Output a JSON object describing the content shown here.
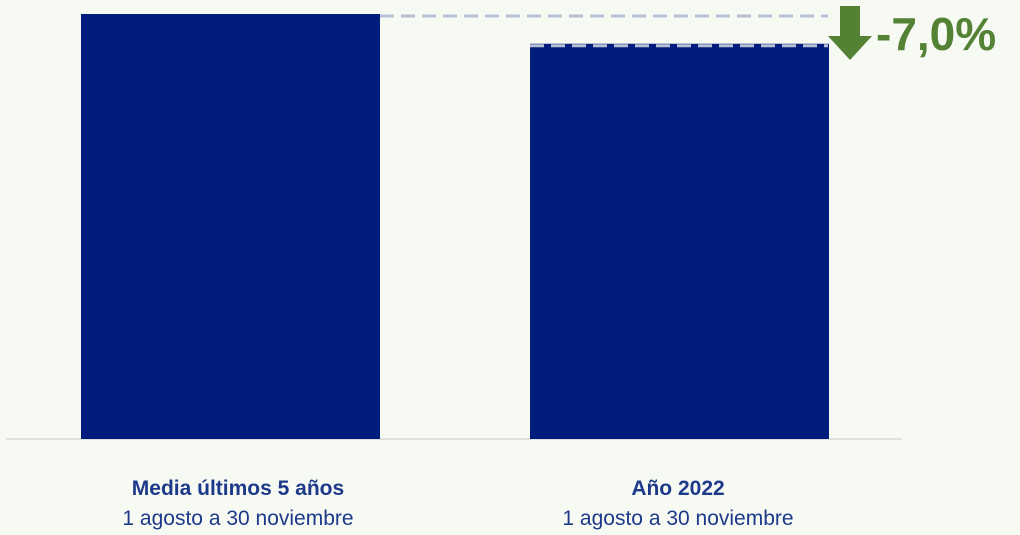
{
  "chart_data": {
    "type": "bar",
    "categories": [
      {
        "title": "Media últimos 5 años",
        "subtitle": "1 agosto a 30 noviembre"
      },
      {
        "title": "Año 2022",
        "subtitle": "1 agosto a 30 noviembre"
      }
    ],
    "values": [
      100,
      93
    ],
    "ylim": [
      0,
      100
    ],
    "grid": false,
    "legend": "none",
    "annotation": {
      "text": "-7,0%",
      "direction": "down"
    },
    "colors": {
      "bar": "#001c7d",
      "label": "#1d3a8a",
      "annotation": "#548235",
      "reference_line": "#b8c0d6",
      "baseline": "#d6d8d6",
      "background": "#f7f9f3"
    }
  }
}
